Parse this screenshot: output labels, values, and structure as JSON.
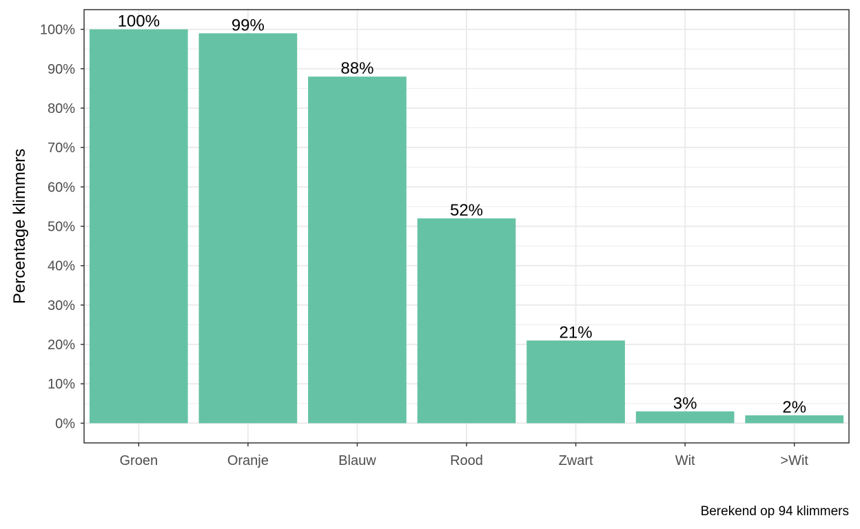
{
  "chart_data": {
    "type": "bar",
    "categories": [
      "Groen",
      "Oranje",
      "Blauw",
      "Rood",
      "Zwart",
      "Wit",
      ">Wit"
    ],
    "values": [
      100,
      99,
      88,
      52,
      21,
      3,
      2
    ],
    "value_labels": [
      "100%",
      "99%",
      "88%",
      "52%",
      "21%",
      "3%",
      "2%"
    ],
    "title": "",
    "xlabel": "",
    "ylabel": "Percentage klimmers",
    "caption": "Berekend op 94 klimmers",
    "ylim": [
      -5,
      105
    ],
    "yticks": [
      0,
      10,
      20,
      30,
      40,
      50,
      60,
      70,
      80,
      90,
      100
    ],
    "ytick_labels": [
      "0%",
      "10%",
      "20%",
      "30%",
      "40%",
      "50%",
      "60%",
      "70%",
      "80%",
      "90%",
      "100%"
    ],
    "grid": true,
    "legend": "none",
    "bar_color": "#66c2a5",
    "grid_color": "#ebebeb",
    "panel_border_color": "#333333"
  }
}
